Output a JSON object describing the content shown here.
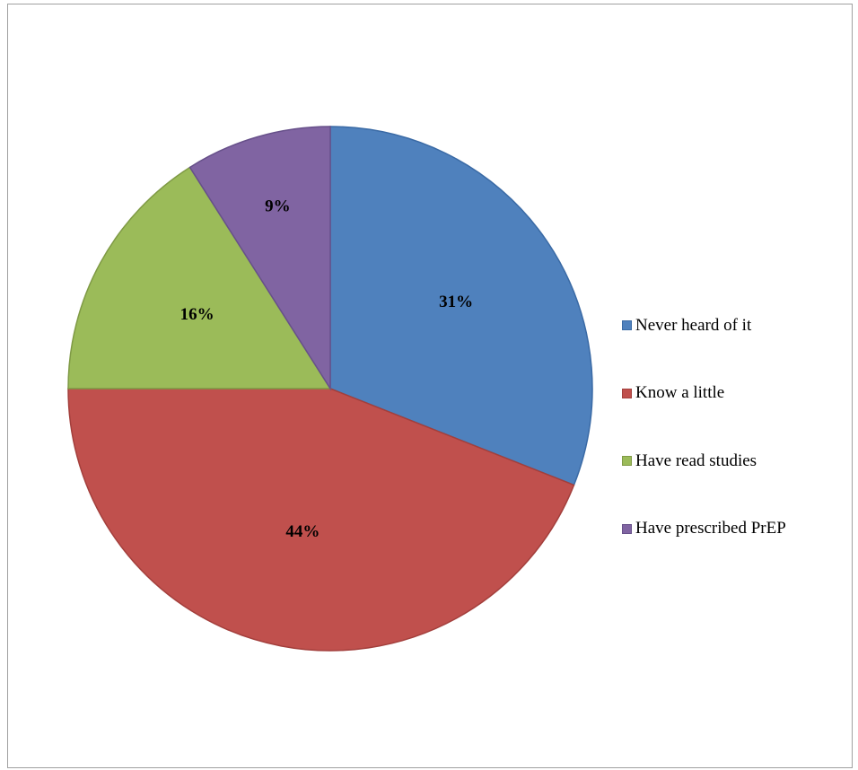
{
  "chart_data": {
    "type": "pie",
    "title": "",
    "categories": [
      "Never heard of it",
      "Know a little",
      "Have read studies",
      "Have prescribed PrEP"
    ],
    "values": [
      31,
      44,
      16,
      9
    ],
    "data_labels": [
      "31%",
      "44%",
      "16%",
      "9%"
    ],
    "colors": [
      "#4f81bd",
      "#c0504d",
      "#9bbb59",
      "#8064a2"
    ],
    "edge_colors": [
      "#3a6aa5",
      "#a33f3c",
      "#7f9a45",
      "#67508a"
    ],
    "legend_position": "right",
    "start_angle": "12 o'clock",
    "direction": "clockwise"
  }
}
